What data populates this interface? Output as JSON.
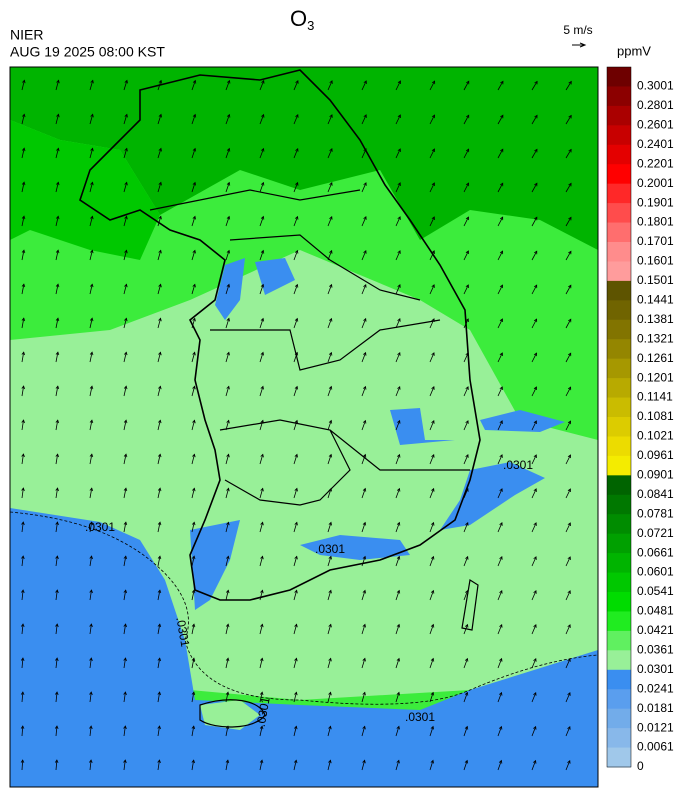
{
  "header": {
    "title": "O",
    "title_subscript": "3",
    "agency": "NIER",
    "datetime": "AUG 19 2025 08:00 KST"
  },
  "wind_scale": {
    "label": "5 m/s"
  },
  "colorbar": {
    "unit": "ppmV",
    "items": [
      {
        "label": "0.3001",
        "color": "#6e0000"
      },
      {
        "label": "0.2801",
        "color": "#8c0000"
      },
      {
        "label": "0.2601",
        "color": "#aa0000"
      },
      {
        "label": "0.2401",
        "color": "#c80000"
      },
      {
        "label": "0.2201",
        "color": "#e40000"
      },
      {
        "label": "0.2001",
        "color": "#ff0000"
      },
      {
        "label": "0.1901",
        "color": "#ff2828"
      },
      {
        "label": "0.1801",
        "color": "#ff4c4c"
      },
      {
        "label": "0.1701",
        "color": "#ff6e6e"
      },
      {
        "label": "0.1601",
        "color": "#ff8c8c"
      },
      {
        "label": "0.1501",
        "color": "#ff9c9c"
      },
      {
        "label": "0.1441",
        "color": "#5e5400"
      },
      {
        "label": "0.1381",
        "color": "#706400"
      },
      {
        "label": "0.1321",
        "color": "#827400"
      },
      {
        "label": "0.1261",
        "color": "#948600"
      },
      {
        "label": "0.1201",
        "color": "#a69800"
      },
      {
        "label": "0.1141",
        "color": "#b8aa00"
      },
      {
        "label": "0.1081",
        "color": "#cabc00"
      },
      {
        "label": "0.1021",
        "color": "#dccc00"
      },
      {
        "label": "0.0961",
        "color": "#ecdc00"
      },
      {
        "label": "0.0901",
        "color": "#f4ec00"
      },
      {
        "label": "0.0841",
        "color": "#006400"
      },
      {
        "label": "0.0781",
        "color": "#007800"
      },
      {
        "label": "0.0721",
        "color": "#008c00"
      },
      {
        "label": "0.0661",
        "color": "#00a000"
      },
      {
        "label": "0.0601",
        "color": "#00b400"
      },
      {
        "label": "0.0541",
        "color": "#00c800"
      },
      {
        "label": "0.0481",
        "color": "#00dc00"
      },
      {
        "label": "0.0421",
        "color": "#20ec20"
      },
      {
        "label": "0.0361",
        "color": "#60f060"
      },
      {
        "label": "0.0301",
        "color": "#98f098"
      },
      {
        "label": "0.0241",
        "color": "#3a8ef0"
      },
      {
        "label": "0.0181",
        "color": "#5a9eee"
      },
      {
        "label": "0.0121",
        "color": "#72acea"
      },
      {
        "label": "0.0061",
        "color": "#88b8ea"
      },
      {
        "label": "0",
        "color": "#a0c8ea"
      }
    ]
  },
  "map": {
    "contour_labels": [
      ".0301",
      ".0301",
      ".0301",
      ".0301",
      ".0301",
      ".0301"
    ]
  }
}
